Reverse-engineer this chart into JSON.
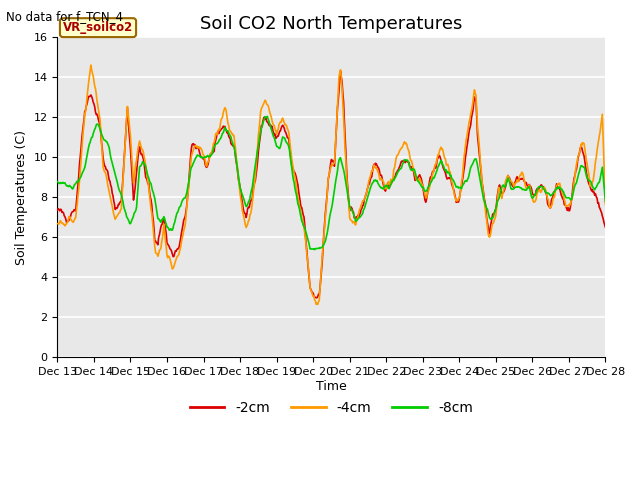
{
  "title": "Soil CO2 North Temperatures",
  "subtitle": "No data for f_TCN_4",
  "xlabel": "Time",
  "ylabel": "Soil Temperatures (C)",
  "ylim": [
    0,
    16
  ],
  "xlim": [
    0,
    360
  ],
  "xtick_labels": [
    "Dec 13",
    "Dec 14",
    "Dec 15",
    "Dec 16",
    "Dec 17",
    "Dec 18",
    "Dec 19",
    "Dec 20",
    "Dec 21",
    "Dec 22",
    "Dec 23",
    "Dec 24",
    "Dec 25",
    "Dec 26",
    "Dec 27",
    "Dec 28"
  ],
  "legend_labels": [
    "-2cm",
    "-4cm",
    "-8cm"
  ],
  "legend_colors": [
    "#dd0000",
    "#ff9900",
    "#00cc00"
  ],
  "box_label": "VR_soilco2",
  "bg_color": "#e8e8e8",
  "line_colors": [
    "#dd0000",
    "#ff9900",
    "#00cc00"
  ],
  "line_width": 1.2,
  "title_fontsize": 13,
  "label_fontsize": 9,
  "tick_fontsize": 8
}
